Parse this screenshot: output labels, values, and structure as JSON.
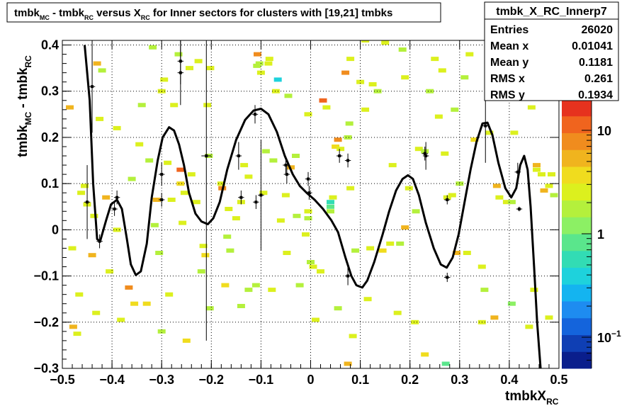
{
  "title_box": {
    "parts": [
      {
        "t": "tmbk",
        "sub": false
      },
      {
        "t": "MC",
        "sub": true
      },
      {
        "t": " - tmbk",
        "sub": false
      },
      {
        "t": "RC",
        "sub": true
      },
      {
        "t": " versus X",
        "sub": false
      },
      {
        "t": "RC",
        "sub": true
      },
      {
        "t": " for Inner sectors for clusters with [19,21] tmbks",
        "sub": false
      }
    ]
  },
  "stats": {
    "name": "tmbk_X_RC_Innerp7",
    "rows": [
      {
        "label": "Entries",
        "value": "26020"
      },
      {
        "label": "Mean x",
        "value": "0.01041"
      },
      {
        "label": "Mean y",
        "value": "0.1181"
      },
      {
        "label": "RMS x",
        "value": "0.261"
      },
      {
        "label": "RMS y",
        "value": "0.1934"
      }
    ]
  },
  "colors": {
    "palette": [
      "#0a1e8c",
      "#0f3fb4",
      "#1464dc",
      "#1e8cf0",
      "#14b4f0",
      "#1ed2dc",
      "#32dcb4",
      "#5ae68c",
      "#8cf064",
      "#b4f03c",
      "#dcf01e",
      "#f0dc1e",
      "#f0b41e",
      "#f08c1e",
      "#f0641e",
      "#e6321e"
    ],
    "curve": "#000000",
    "points": "#000000"
  },
  "chart_data": {
    "type": "heatmap",
    "overlays": [
      "line",
      "scatter"
    ],
    "xlabel_parts": [
      {
        "t": "tmbkX",
        "sub": false
      },
      {
        "t": "RC",
        "sub": true
      }
    ],
    "ylabel_parts": [
      {
        "t": "tmbk",
        "sub": false
      },
      {
        "t": "MC",
        "sub": true
      },
      {
        "t": " - tmbk",
        "sub": false
      },
      {
        "t": "RC",
        "sub": true
      }
    ],
    "xlim": [
      -0.5,
      0.5
    ],
    "ylim": [
      -0.3,
      0.41
    ],
    "xticks": [
      -0.5,
      -0.4,
      -0.3,
      -0.2,
      -0.1,
      0,
      0.1,
      0.2,
      0.3,
      0.4,
      0.5
    ],
    "xtick_labels": [
      "−0.5",
      "−0.4",
      "−0.3",
      "−0.2",
      "−0.1",
      "0",
      "0.1",
      "0.2",
      "0.3",
      "0.4",
      "0.5"
    ],
    "yticks": [
      -0.3,
      -0.2,
      -0.1,
      0,
      0.1,
      0.2,
      0.3,
      0.4
    ],
    "ytick_labels": [
      "−0.3",
      "−0.2",
      "−0.1",
      "0",
      "0.1",
      "0.2",
      "0.3",
      "0.4"
    ],
    "grid": true,
    "z_log_scale": true,
    "zlim": [
      0.05,
      20
    ],
    "zticks": [
      0.1,
      1,
      10
    ],
    "ztick_labels": [
      {
        "base": "10",
        "exp": "−1"
      },
      {
        "base": "1",
        "exp": ""
      },
      {
        "base": "10",
        "exp": ""
      }
    ],
    "cells": [
      [
        -0.485,
        0.265,
        4.5
      ],
      [
        -0.48,
        -0.04,
        3
      ],
      [
        -0.478,
        -0.21,
        6
      ],
      [
        -0.47,
        -0.225,
        2.2
      ],
      [
        -0.466,
        -0.14,
        2.5
      ],
      [
        -0.462,
        0.08,
        2.5
      ],
      [
        -0.455,
        0.095,
        3
      ],
      [
        -0.45,
        0.055,
        2.3
      ],
      [
        -0.44,
        -0.055,
        6
      ],
      [
        -0.436,
        0.03,
        2.5
      ],
      [
        -0.432,
        -0.18,
        3
      ],
      [
        -0.43,
        0.36,
        5
      ],
      [
        -0.425,
        0.24,
        2.5
      ],
      [
        -0.42,
        0.345,
        2
      ],
      [
        -0.412,
        0.07,
        5
      ],
      [
        -0.405,
        -0.09,
        2.2
      ],
      [
        -0.39,
        0.22,
        3
      ],
      [
        -0.39,
        0,
        3
      ],
      [
        -0.382,
        -0.195,
        2.5
      ],
      [
        -0.366,
        -0.125,
        7
      ],
      [
        -0.36,
        0.11,
        1.7
      ],
      [
        -0.355,
        -0.16,
        4
      ],
      [
        -0.345,
        0.185,
        3
      ],
      [
        -0.34,
        0.27,
        2
      ],
      [
        -0.33,
        -0.16,
        4
      ],
      [
        -0.325,
        0.15,
        2
      ],
      [
        -0.318,
        0.395,
        2
      ],
      [
        -0.314,
        0.01,
        2
      ],
      [
        -0.31,
        0.065,
        5
      ],
      [
        -0.305,
        -0.05,
        2
      ],
      [
        -0.3,
        0.3,
        2.7
      ],
      [
        -0.3,
        -0.22,
        2
      ],
      [
        -0.295,
        0.325,
        2.5
      ],
      [
        -0.288,
        0.145,
        3
      ],
      [
        -0.285,
        -0.14,
        2.8
      ],
      [
        -0.28,
        0.065,
        3
      ],
      [
        -0.275,
        0.27,
        3
      ],
      [
        -0.266,
        0.38,
        2
      ],
      [
        -0.262,
        0.13,
        10
      ],
      [
        -0.262,
        0.1,
        3.5
      ],
      [
        -0.258,
        0.015,
        2.7
      ],
      [
        -0.254,
        0.08,
        2.3
      ],
      [
        -0.25,
        -0.24,
        3.5
      ],
      [
        -0.244,
        0.35,
        2.2
      ],
      [
        -0.24,
        0.12,
        2.5
      ],
      [
        -0.23,
        0.06,
        2.5
      ],
      [
        -0.226,
        0.365,
        2.2
      ],
      [
        -0.22,
        -0.09,
        2
      ],
      [
        -0.216,
        -0.035,
        2.5
      ],
      [
        -0.212,
        -0.055,
        4
      ],
      [
        -0.208,
        0.27,
        3
      ],
      [
        -0.205,
        0.16,
        2
      ],
      [
        -0.203,
        -0.17,
        2
      ],
      [
        -0.202,
        0.35,
        2.4
      ],
      [
        -0.18,
        0.1,
        3
      ],
      [
        -0.178,
        0.09,
        7
      ],
      [
        -0.172,
        -0.12,
        4
      ],
      [
        -0.168,
        -0.015,
        2
      ],
      [
        -0.165,
        0.045,
        2.3
      ],
      [
        -0.162,
        -0.045,
        2
      ],
      [
        -0.15,
        0.025,
        2.2
      ],
      [
        -0.14,
        -0.165,
        2
      ],
      [
        -0.14,
        0.06,
        2.5
      ],
      [
        -0.134,
        0.14,
        2.4
      ],
      [
        -0.125,
        -0.13,
        2
      ],
      [
        -0.125,
        0.115,
        2.3
      ],
      [
        -0.11,
        -0.12,
        2
      ],
      [
        -0.108,
        0.355,
        2
      ],
      [
        -0.107,
        0.38,
        9
      ],
      [
        -0.103,
        0.36,
        2
      ],
      [
        -0.1,
        0.34,
        3
      ],
      [
        -0.095,
        0.08,
        2.5
      ],
      [
        -0.09,
        0.17,
        2
      ],
      [
        -0.085,
        0.36,
        2.3
      ],
      [
        -0.083,
        0.37,
        2.6
      ],
      [
        -0.078,
        -0.13,
        2.2
      ],
      [
        -0.075,
        0.15,
        2
      ],
      [
        -0.07,
        0.3,
        2.6
      ],
      [
        -0.066,
        0.325,
        0.4
      ],
      [
        -0.06,
        0.02,
        3
      ],
      [
        -0.05,
        0.075,
        2.4
      ],
      [
        -0.048,
        -0.05,
        3
      ],
      [
        -0.045,
        0.29,
        2
      ],
      [
        -0.04,
        0.135,
        4.5
      ],
      [
        -0.03,
        0.16,
        2
      ],
      [
        -0.028,
        0.03,
        2
      ],
      [
        -0.022,
        -0.12,
        2
      ],
      [
        -0.01,
        -0.01,
        2.5
      ],
      [
        -0.005,
        0.025,
        2
      ],
      [
        -0.005,
        0.25,
        2.5
      ],
      [
        -0.005,
        0.04,
        2.2
      ],
      [
        0,
        -0.07,
        2
      ],
      [
        0.005,
        -0.08,
        2.2
      ],
      [
        0.01,
        -0.195,
        2.5
      ],
      [
        0.02,
        -0.09,
        2.2
      ],
      [
        0.04,
        0.06,
        0.5
      ],
      [
        0.04,
        0.05,
        0.8
      ],
      [
        0.04,
        0.04,
        1.5
      ],
      [
        0.025,
        0.28,
        10
      ],
      [
        0.032,
        0.265,
        2.3
      ],
      [
        0.045,
        0.07,
        2.7
      ],
      [
        0.05,
        0.18,
        4
      ],
      [
        0.055,
        -0.17,
        2
      ],
      [
        0.055,
        0.195,
        7
      ],
      [
        0.06,
        0.175,
        3
      ],
      [
        0.07,
        0.34,
        7
      ],
      [
        0.075,
        -0.29,
        6
      ],
      [
        0.075,
        0.2,
        2
      ],
      [
        0.078,
        0.23,
        2
      ],
      [
        0.08,
        0.09,
        3
      ],
      [
        0.08,
        0.37,
        3
      ],
      [
        0.085,
        -0.23,
        3
      ],
      [
        0.09,
        -0.045,
        2
      ],
      [
        0.1,
        0.32,
        2.3
      ],
      [
        0.11,
        0.41,
        2.6
      ],
      [
        0.11,
        0.26,
        2.5
      ],
      [
        0.115,
        -0.15,
        2.5
      ],
      [
        0.12,
        -0.04,
        3
      ],
      [
        0.125,
        0.315,
        2.5
      ],
      [
        0.135,
        0.3,
        2
      ],
      [
        0.145,
        -0.045,
        4
      ],
      [
        0.15,
        0.405,
        2.5
      ],
      [
        0.16,
        -0.03,
        2.2
      ],
      [
        0.165,
        0.14,
        2.2
      ],
      [
        0.175,
        -0.18,
        2.3
      ],
      [
        0.18,
        -0.03,
        2
      ],
      [
        0.185,
        0.39,
        2
      ],
      [
        0.19,
        0.33,
        2.2
      ],
      [
        0.19,
        0.005,
        5
      ],
      [
        0.198,
        0.09,
        2.7
      ],
      [
        0.21,
        -0.2,
        3
      ],
      [
        0.212,
        0.04,
        2
      ],
      [
        0.218,
        0.175,
        2.2
      ],
      [
        0.23,
        0.17,
        2
      ],
      [
        0.23,
        -0.27,
        4
      ],
      [
        0.24,
        0.3,
        2
      ],
      [
        0.25,
        0.37,
        2.4
      ],
      [
        0.258,
        0.245,
        2.2
      ],
      [
        0.265,
        0.345,
        2.5
      ],
      [
        0.272,
        -0.29,
        0.7
      ],
      [
        0.27,
        0.165,
        2.5
      ],
      [
        0.275,
        0.07,
        2.5
      ],
      [
        0.285,
        0.075,
        2.2
      ],
      [
        0.29,
        0.26,
        2
      ],
      [
        0.294,
        -0.05,
        5
      ],
      [
        0.3,
        0.1,
        2
      ],
      [
        0.31,
        0.33,
        2
      ],
      [
        0.315,
        -0.05,
        2.5
      ],
      [
        0.32,
        0.38,
        2.3
      ],
      [
        0.33,
        0.195,
        4
      ],
      [
        0.345,
        -0.2,
        3
      ],
      [
        0.345,
        -0.08,
        2.4
      ],
      [
        0.35,
        -0.13,
        2
      ],
      [
        0.36,
        0.21,
        2.7
      ],
      [
        0.365,
        0.36,
        2.6
      ],
      [
        0.37,
        -0.19,
        6
      ],
      [
        0.375,
        0.095,
        4.5
      ],
      [
        0.38,
        0.07,
        2.5
      ],
      [
        0.385,
        0.37,
        2.5
      ],
      [
        0.395,
        0.06,
        3
      ],
      [
        0.4,
        0.35,
        2
      ],
      [
        0.405,
        -0.16,
        1.4
      ],
      [
        0.405,
        0.06,
        2
      ],
      [
        0.41,
        0.21,
        2.3
      ],
      [
        0.44,
        -0.21,
        3
      ],
      [
        0.445,
        0.265,
        2.4
      ],
      [
        0.45,
        -0.13,
        2.5
      ],
      [
        0.455,
        0.14,
        6
      ],
      [
        0.455,
        0.13,
        2.6
      ],
      [
        0.465,
        0.12,
        2.2
      ],
      [
        0.47,
        0.085,
        5
      ],
      [
        0.48,
        0.095,
        3
      ],
      [
        0.48,
        -0.19,
        3
      ],
      [
        0.485,
        0.12,
        2.5
      ],
      [
        0.49,
        0.075,
        2
      ]
    ],
    "curve": [
      [
        -0.455,
        0.4
      ],
      [
        -0.445,
        0.28
      ],
      [
        -0.438,
        0.1
      ],
      [
        -0.43,
        -0.02
      ],
      [
        -0.424,
        -0.025
      ],
      [
        -0.412,
        0.02
      ],
      [
        -0.402,
        0.055
      ],
      [
        -0.39,
        0.065
      ],
      [
        -0.38,
        0.045
      ],
      [
        -0.37,
        -0.02
      ],
      [
        -0.362,
        -0.075
      ],
      [
        -0.352,
        -0.098
      ],
      [
        -0.342,
        -0.09
      ],
      [
        -0.33,
        -0.03
      ],
      [
        -0.32,
        0.07
      ],
      [
        -0.308,
        0.15
      ],
      [
        -0.298,
        0.2
      ],
      [
        -0.285,
        0.222
      ],
      [
        -0.275,
        0.215
      ],
      [
        -0.265,
        0.185
      ],
      [
        -0.255,
        0.14
      ],
      [
        -0.245,
        0.08
      ],
      [
        -0.232,
        0.035
      ],
      [
        -0.22,
        0.018
      ],
      [
        -0.207,
        0.012
      ],
      [
        -0.196,
        0.025
      ],
      [
        -0.183,
        0.06
      ],
      [
        -0.168,
        0.13
      ],
      [
        -0.15,
        0.195
      ],
      [
        -0.132,
        0.238
      ],
      [
        -0.115,
        0.258
      ],
      [
        -0.1,
        0.262
      ],
      [
        -0.085,
        0.25
      ],
      [
        -0.068,
        0.212
      ],
      [
        -0.052,
        0.16
      ],
      [
        -0.036,
        0.12
      ],
      [
        -0.022,
        0.095
      ],
      [
        -0.008,
        0.08
      ],
      [
        0.008,
        0.065
      ],
      [
        0.025,
        0.045
      ],
      [
        0.042,
        0.02
      ],
      [
        0.055,
        -0.005
      ],
      [
        0.07,
        -0.06
      ],
      [
        0.082,
        -0.1
      ],
      [
        0.092,
        -0.12
      ],
      [
        0.104,
        -0.125
      ],
      [
        0.114,
        -0.11
      ],
      [
        0.128,
        -0.07
      ],
      [
        0.145,
        -0.01
      ],
      [
        0.158,
        0.04
      ],
      [
        0.172,
        0.085
      ],
      [
        0.185,
        0.11
      ],
      [
        0.196,
        0.118
      ],
      [
        0.206,
        0.11
      ],
      [
        0.218,
        0.075
      ],
      [
        0.232,
        0.015
      ],
      [
        0.248,
        -0.04
      ],
      [
        0.262,
        -0.075
      ],
      [
        0.274,
        -0.082
      ],
      [
        0.286,
        -0.06
      ],
      [
        0.298,
        -0.01
      ],
      [
        0.31,
        0.06
      ],
      [
        0.322,
        0.13
      ],
      [
        0.334,
        0.19
      ],
      [
        0.346,
        0.23
      ],
      [
        0.356,
        0.232
      ],
      [
        0.366,
        0.205
      ],
      [
        0.378,
        0.145
      ],
      [
        0.392,
        0.09
      ],
      [
        0.404,
        0.07
      ],
      [
        0.414,
        0.09
      ],
      [
        0.422,
        0.14
      ],
      [
        0.43,
        0.16
      ],
      [
        0.437,
        0.13
      ],
      [
        0.443,
        0.05
      ],
      [
        0.45,
        -0.08
      ],
      [
        0.456,
        -0.2
      ],
      [
        0.463,
        -0.3
      ]
    ],
    "points": [
      {
        "x": -0.44,
        "y": 0.31,
        "ex": 0.006,
        "ey": 0.1
      },
      {
        "x": -0.45,
        "y": 0.06,
        "ex": 0.006,
        "ey": 0.08
      },
      {
        "x": -0.425,
        "y": -0.025,
        "ex": 0.006,
        "ey": 0.015
      },
      {
        "x": -0.39,
        "y": 0.07,
        "ex": 0.006,
        "ey": 0.015
      },
      {
        "x": -0.395,
        "y": 0.045,
        "ex": 0.006,
        "ey": 0.015
      },
      {
        "x": -0.3,
        "y": 0.12,
        "ex": 0.006,
        "ey": 0.025
      },
      {
        "x": -0.3,
        "y": 0.065,
        "ex": 0.006,
        "ey": 0.015
      },
      {
        "x": -0.262,
        "y": 0.365,
        "ex": 0.006,
        "ey": 0.05
      },
      {
        "x": -0.262,
        "y": 0.34,
        "ex": 0.006,
        "ey": 0.07
      },
      {
        "x": -0.21,
        "y": 0.16,
        "ex": 0.01,
        "ey": 0.4
      },
      {
        "x": -0.145,
        "y": 0.16,
        "ex": 0.006,
        "ey": 0.03
      },
      {
        "x": -0.14,
        "y": 0.07,
        "ex": 0.006,
        "ey": 0.015
      },
      {
        "x": -0.11,
        "y": 0.06,
        "ex": 0.006,
        "ey": 0.015
      },
      {
        "x": -0.1,
        "y": 0.075,
        "ex": 0.006,
        "ey": 0.12
      },
      {
        "x": -0.112,
        "y": 0.25,
        "ex": 0.006,
        "ey": 0.02
      },
      {
        "x": -0.05,
        "y": 0.14,
        "ex": 0.006,
        "ey": 0.02
      },
      {
        "x": -0.048,
        "y": 0.12,
        "ex": 0.006,
        "ey": 0.02
      },
      {
        "x": -0.005,
        "y": 0.11,
        "ex": 0.006,
        "ey": 0.015
      },
      {
        "x": -0.003,
        "y": 0.08,
        "ex": 0.006,
        "ey": 0.015
      },
      {
        "x": 0.058,
        "y": 0.16,
        "ex": 0.006,
        "ey": 0.015
      },
      {
        "x": 0.075,
        "y": 0.15,
        "ex": 0.006,
        "ey": 0.015
      },
      {
        "x": 0.075,
        "y": -0.1,
        "ex": 0.006,
        "ey": 0.02
      },
      {
        "x": 0.23,
        "y": 0.165,
        "ex": 0.006,
        "ey": 0.015
      },
      {
        "x": 0.232,
        "y": 0.16,
        "ex": 0.006,
        "ey": 0.03
      },
      {
        "x": 0.275,
        "y": 0.065,
        "ex": 0.006,
        "ey": 0.01
      },
      {
        "x": 0.275,
        "y": -0.103,
        "ex": 0.006,
        "ey": 0.01
      },
      {
        "x": 0.352,
        "y": 0.225,
        "ex": 0.006,
        "ey": 0.08
      },
      {
        "x": 0.417,
        "y": 0.125,
        "ex": 0.006,
        "ey": 0.02
      },
      {
        "x": 0.42,
        "y": 0.045,
        "ex": 0.006,
        "ey": 0.005
      }
    ]
  }
}
